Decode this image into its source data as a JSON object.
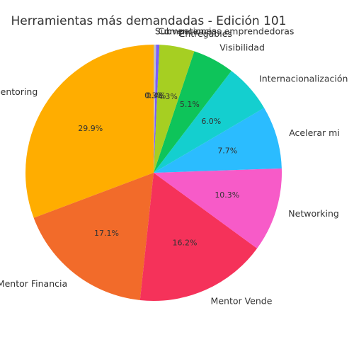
{
  "chart_data": {
    "type": "pie",
    "title": "Herramientas más demandadas - Edición 101",
    "categories": [
      "Mentoring",
      "Mentor Financia",
      "Mentor Vende",
      "Networking",
      "Acelerar mi",
      "Internacionalización",
      "Visibilidad",
      "Entregables",
      "Competencias emprendedoras",
      "Subvenciones"
    ],
    "values": [
      29.9,
      17.1,
      16.2,
      10.3,
      7.7,
      6.0,
      5.1,
      4.3,
      0.4,
      0.3
    ],
    "value_labels": [
      "29.9%",
      "17.1%",
      "16.2%",
      "10.3%",
      "7.7%",
      "6.0%",
      "5.1%",
      "4.3%",
      "0.4%",
      "0.3%"
    ],
    "colors": [
      "#ffad00",
      "#f26b2a",
      "#f5325a",
      "#f75bc8",
      "#2bbcff",
      "#14cfcf",
      "#0ec45a",
      "#a6cf22",
      "#7a5cff",
      "#c0c0c0"
    ],
    "start_angle": 90
  }
}
